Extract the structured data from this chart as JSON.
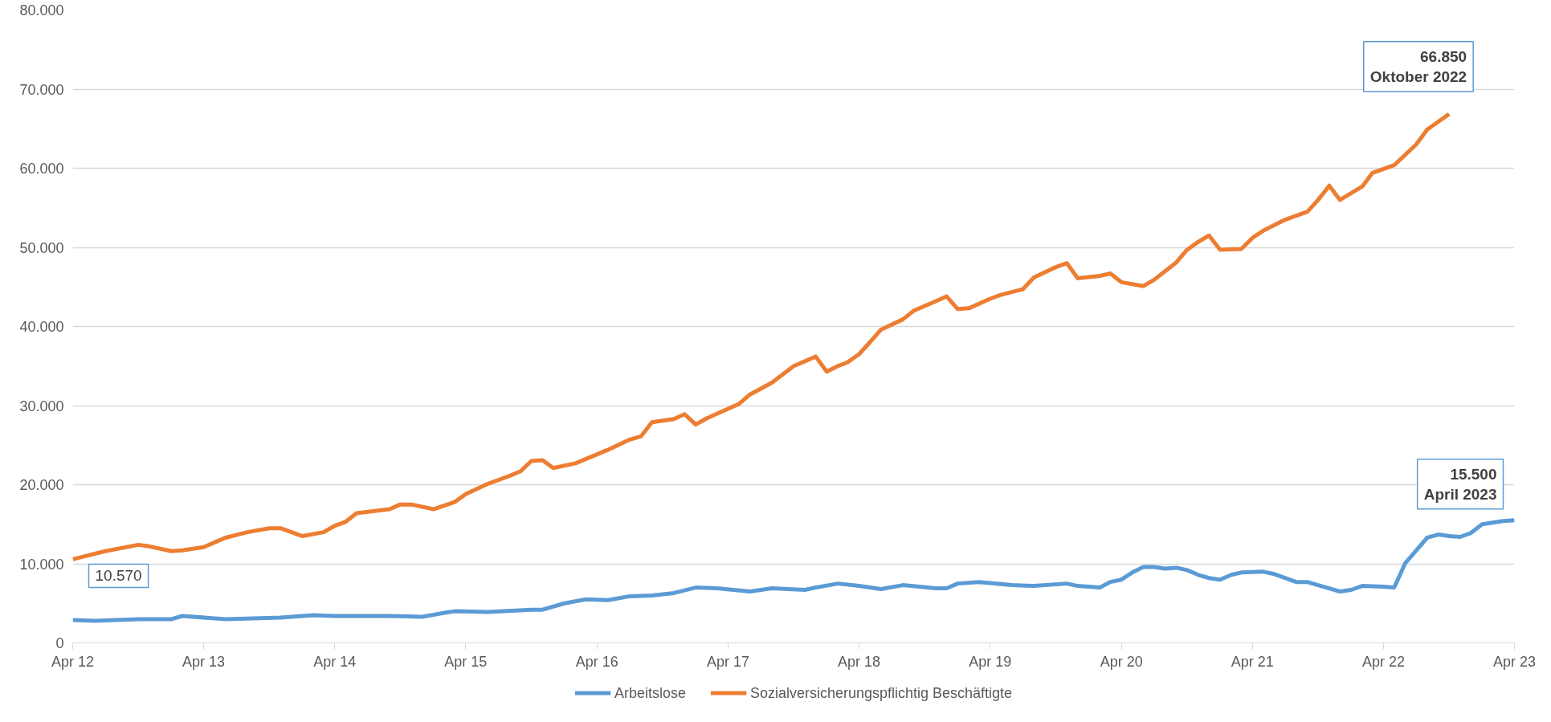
{
  "chart_data": {
    "type": "line",
    "x": [
      "2012-04",
      "2012-06",
      "2012-10",
      "2013-01",
      "2013-02",
      "2013-06",
      "2013-11",
      "2014-02",
      "2014-04",
      "2014-09",
      "2014-12",
      "2015-02",
      "2015-03",
      "2015-06",
      "2015-10",
      "2015-11",
      "2016-01",
      "2016-03",
      "2016-05",
      "2016-07",
      "2016-09",
      "2016-11",
      "2017-01",
      "2017-03",
      "2017-06",
      "2017-08",
      "2017-11",
      "2017-12",
      "2018-02",
      "2018-04",
      "2018-06",
      "2018-08",
      "2018-11",
      "2018-12",
      "2019-01",
      "2019-03",
      "2019-06",
      "2019-08",
      "2019-11",
      "2019-12",
      "2020-02",
      "2020-03",
      "2020-04",
      "2020-05",
      "2020-06",
      "2020-07",
      "2020-08",
      "2020-09",
      "2020-10",
      "2020-11",
      "2020-12",
      "2021-01",
      "2021-02",
      "2021-03",
      "2021-05",
      "2021-06",
      "2021-08",
      "2021-09",
      "2021-10",
      "2021-12",
      "2022-01",
      "2022-02",
      "2022-04",
      "2022-05",
      "2022-06",
      "2022-08",
      "2022-09",
      "2022-10",
      "2022-11",
      "2022-12",
      "2023-01",
      "2023-03",
      "2023-04"
    ],
    "series": [
      {
        "name": "Arbeitslose",
        "color": "#5b9bd5",
        "values": [
          2900,
          2800,
          3000,
          3000,
          3400,
          3000,
          3200,
          3500,
          3400,
          3400,
          3300,
          3800,
          4000,
          3900,
          4200,
          4200,
          5000,
          5500,
          5400,
          5900,
          6000,
          6300,
          7000,
          6900,
          6500,
          6900,
          6700,
          7000,
          7500,
          7200,
          6800,
          7300,
          6900,
          6900,
          7500,
          7700,
          7300,
          7200,
          7500,
          7200,
          7000,
          7700,
          8000,
          8900,
          9600,
          9600,
          9400,
          9500,
          9200,
          8600,
          8200,
          8000,
          8600,
          8900,
          9000,
          8700,
          7700,
          7700,
          7300,
          6500,
          6700,
          7200,
          7100,
          7000,
          10100,
          13300,
          13700,
          13500,
          13400,
          13900,
          15000,
          15400,
          15500
        ]
      },
      {
        "name": "Sozialversicherungspflichtig Beschäftigte",
        "color": "#ed7d31",
        "x": [
          "2012-04",
          "2012-07",
          "2012-10",
          "2012-11",
          "2013-01",
          "2013-02",
          "2013-04",
          "2013-05",
          "2013-06",
          "2013-08",
          "2013-10",
          "2013-11",
          "2014-01",
          "2014-03",
          "2014-04",
          "2014-05",
          "2014-06",
          "2014-09",
          "2014-10",
          "2014-11",
          "2015-01",
          "2015-03",
          "2015-04",
          "2015-06",
          "2015-08",
          "2015-09",
          "2015-10",
          "2015-11",
          "2015-12",
          "2016-02",
          "2016-05",
          "2016-07",
          "2016-08",
          "2016-09",
          "2016-11",
          "2016-12",
          "2017-01",
          "2017-02",
          "2017-05",
          "2017-06",
          "2017-08",
          "2017-10",
          "2017-11",
          "2017-12",
          "2018-01",
          "2018-02",
          "2018-03",
          "2018-04",
          "2018-05",
          "2018-06",
          "2018-08",
          "2018-09",
          "2018-11",
          "2018-12",
          "2019-01",
          "2019-02",
          "2019-04",
          "2019-05",
          "2019-07",
          "2019-08",
          "2019-10",
          "2019-11",
          "2019-12",
          "2020-02",
          "2020-03",
          "2020-04",
          "2020-06",
          "2020-07",
          "2020-09",
          "2020-10",
          "2020-11",
          "2020-12",
          "2021-01",
          "2021-03",
          "2021-04",
          "2021-05",
          "2021-07",
          "2021-09",
          "2021-10",
          "2021-11",
          "2021-12",
          "2022-02",
          "2022-03",
          "2022-05",
          "2022-07",
          "2022-08",
          "2022-10"
        ],
        "values": [
          10570,
          11600,
          12400,
          12200,
          11600,
          11700,
          12100,
          12700,
          13300,
          14000,
          14500,
          14500,
          13500,
          14000,
          14800,
          15300,
          16400,
          16900,
          17500,
          17500,
          16900,
          17800,
          18800,
          20100,
          21100,
          21700,
          23000,
          23100,
          22100,
          22700,
          24400,
          25700,
          26100,
          27900,
          28300,
          28900,
          27600,
          28400,
          30200,
          31400,
          32900,
          35000,
          35600,
          36200,
          34300,
          35000,
          35500,
          36500,
          38000,
          39600,
          40900,
          42000,
          43200,
          43800,
          42200,
          42300,
          43500,
          44000,
          44700,
          46200,
          47500,
          48000,
          46100,
          46400,
          46700,
          45600,
          45100,
          45900,
          48100,
          49700,
          50700,
          51500,
          49700,
          49800,
          51200,
          52100,
          53500,
          54500,
          56000,
          57800,
          56000,
          57700,
          59400,
          60400,
          63000,
          64900,
          66850
        ]
      }
    ],
    "xlim": [
      "2012-04",
      "2023-04"
    ],
    "xticks": [
      {
        "value": "2012-04",
        "label": "Apr 12"
      },
      {
        "value": "2013-04",
        "label": "Apr 13"
      },
      {
        "value": "2014-04",
        "label": "Apr 14"
      },
      {
        "value": "2015-04",
        "label": "Apr 15"
      },
      {
        "value": "2016-04",
        "label": "Apr 16"
      },
      {
        "value": "2017-04",
        "label": "Apr 17"
      },
      {
        "value": "2018-04",
        "label": "Apr 18"
      },
      {
        "value": "2019-04",
        "label": "Apr 19"
      },
      {
        "value": "2020-04",
        "label": "Apr 20"
      },
      {
        "value": "2021-04",
        "label": "Apr 21"
      },
      {
        "value": "2022-04",
        "label": "Apr 22"
      },
      {
        "value": "2023-04",
        "label": "Apr 23"
      }
    ],
    "ylim": [
      0,
      80000
    ],
    "yticks": [
      0,
      {
        "value": 10000,
        "label": "10.000"
      },
      {
        "value": 20000,
        "label": "20.000"
      },
      {
        "value": 30000,
        "label": "30.000"
      },
      {
        "value": 40000,
        "label": "40.000"
      },
      {
        "value": 50000,
        "label": "50.000"
      },
      {
        "value": 60000,
        "label": "60.000"
      },
      {
        "value": 70000,
        "label": "70.000"
      },
      {
        "value": 80000,
        "label": "80.000"
      }
    ],
    "annotations": [
      {
        "text": "10.570",
        "x": "2012-04",
        "y": 10570
      },
      {
        "text": "66.850\nOktober 2022",
        "x": "2022-10",
        "y": 66850
      },
      {
        "text": "15.500\nApril 2023",
        "x": "2023-04",
        "y": 15500
      }
    ],
    "grid": "y",
    "legend": "bottom",
    "marker": "none",
    "line_style": "solid"
  }
}
